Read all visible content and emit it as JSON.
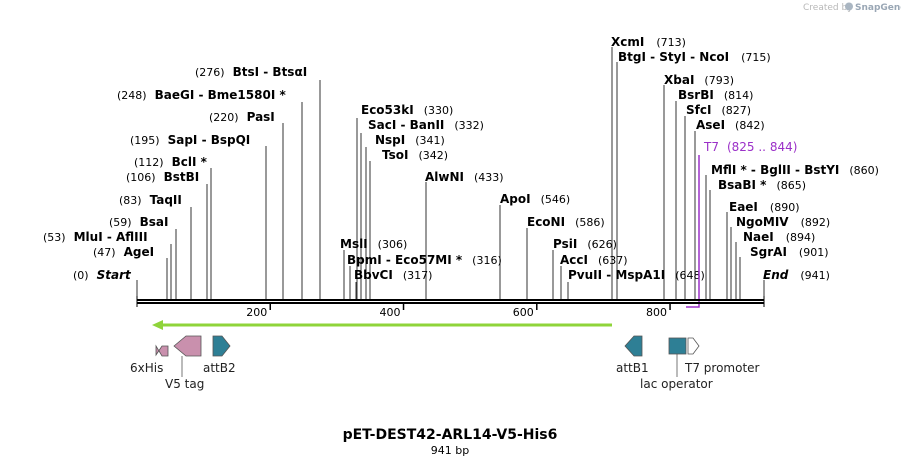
{
  "credit": {
    "prefix": "Created by",
    "brand": "SnapGene"
  },
  "title": "pET-DEST42-ARL14-V5-His6",
  "subtitle": "941 bp",
  "sequence_length": 941,
  "ticks": [
    {
      "value": 200,
      "label": "200"
    },
    {
      "value": 400,
      "label": "400"
    },
    {
      "value": 600,
      "label": "600"
    },
    {
      "value": 800,
      "label": "800"
    }
  ],
  "start_label": {
    "pos": "(0)",
    "name": "Start"
  },
  "end_label": {
    "name": "End",
    "pos": "(941)"
  },
  "sites": [
    {
      "id": "btsi",
      "pos": "(276)",
      "names": "BtsI  - BtsαI",
      "x": "276"
    },
    {
      "id": "baegi",
      "pos": "(248)",
      "names": "BaeGI  - Bme1580I *",
      "x": "248"
    },
    {
      "id": "pasi",
      "pos": "(220)",
      "names": "PasI",
      "x": "220"
    },
    {
      "id": "sapi",
      "pos": "(195)",
      "names": "SapI  - BspQI",
      "x": "195"
    },
    {
      "id": "bcli",
      "pos": "(112)",
      "names": "BclI *",
      "x": "112"
    },
    {
      "id": "bstbi",
      "pos": "(106)",
      "names": "BstBI",
      "x": "106"
    },
    {
      "id": "taqii",
      "pos": "(83)",
      "names": "TaqII",
      "x": "83"
    },
    {
      "id": "bsai",
      "pos": "(59)",
      "names": "BsaI",
      "x": "59"
    },
    {
      "id": "mlui",
      "pos": "(53)",
      "names": "MluI  - AflIII",
      "x": "53"
    },
    {
      "id": "agei",
      "pos": "(47)",
      "names": "AgeI",
      "x": "47"
    },
    {
      "id": "eco53ki",
      "pos": "(330)",
      "names": "Eco53kI",
      "x": "330"
    },
    {
      "id": "saci",
      "pos": "(332)",
      "names": "SacI  - BanII",
      "x": "332"
    },
    {
      "id": "nspi",
      "pos": "(341)",
      "names": "NspI",
      "x": "341"
    },
    {
      "id": "tsoi",
      "pos": "(342)",
      "names": "TsoI",
      "x": "342"
    },
    {
      "id": "msli",
      "pos": "(306)",
      "names": "MslI",
      "x": "306"
    },
    {
      "id": "bpmi",
      "pos": "(316)",
      "names": "BpmI  - Eco57MI *",
      "x": "316"
    },
    {
      "id": "bbvci",
      "pos": "(317)",
      "names": "BbvCI",
      "x": "317"
    },
    {
      "id": "alwni",
      "pos": "(433)",
      "names": "AlwNI",
      "x": "433"
    },
    {
      "id": "apoi",
      "pos": "(546)",
      "names": "ApoI",
      "x": "546"
    },
    {
      "id": "econi",
      "pos": "(586)",
      "names": "EcoNI",
      "x": "586"
    },
    {
      "id": "psii",
      "pos": "(626)",
      "names": "PsiI",
      "x": "626"
    },
    {
      "id": "acci",
      "pos": "(637)",
      "names": "AccI",
      "x": "637"
    },
    {
      "id": "pvuii",
      "pos": "(648)",
      "names": "PvuII  - MspA1I",
      "x": "648"
    },
    {
      "id": "xcmi",
      "pos": "(713)",
      "names": "XcmI",
      "x": "713"
    },
    {
      "id": "btgi",
      "pos": "(715)",
      "names": "BtgI  - StyI  - NcoI",
      "x": "715"
    },
    {
      "id": "xbai",
      "pos": "(793)",
      "names": "XbaI",
      "x": "793"
    },
    {
      "id": "bsrbi",
      "pos": "(814)",
      "names": "BsrBI",
      "x": "814"
    },
    {
      "id": "sfci",
      "pos": "(827)",
      "names": "SfcI",
      "x": "827"
    },
    {
      "id": "asei",
      "pos": "(842)",
      "names": "AseI",
      "x": "842"
    },
    {
      "id": "mfli",
      "pos": "(860)",
      "names": "MflI * - BglII  - BstYI",
      "x": "860"
    },
    {
      "id": "bsabi",
      "pos": "(865)",
      "names": "BsaBI *",
      "x": "865"
    },
    {
      "id": "eaei",
      "pos": "(890)",
      "names": "EaeI",
      "x": "890"
    },
    {
      "id": "ngomiv",
      "pos": "(892)",
      "names": "NgoMIV",
      "x": "892"
    },
    {
      "id": "naei",
      "pos": "(894)",
      "names": "NaeI",
      "x": "894"
    },
    {
      "id": "sgrai",
      "pos": "(901)",
      "names": "SgrAI",
      "x": "901"
    }
  ],
  "primer": {
    "name": "T7",
    "range": "(825 .. 844)",
    "color": "#9b30c8"
  },
  "orf_arrow": {
    "from": 10,
    "to": 715,
    "direction": "reverse",
    "color": "#8fd43a"
  },
  "features": [
    {
      "id": "6xhis",
      "label": "6xHis",
      "type": "tag",
      "color": "#c990ad"
    },
    {
      "id": "v5tag",
      "label": "V5 tag",
      "type": "tag",
      "color": "#c990ad"
    },
    {
      "id": "attb2",
      "label": "attB2",
      "type": "recomb",
      "color": "#2e7f95"
    },
    {
      "id": "attb1",
      "label": "attB1",
      "type": "recomb",
      "color": "#2e7f95"
    },
    {
      "id": "lacop",
      "label": "lac operator",
      "type": "operator",
      "color": "#2e7f95"
    },
    {
      "id": "t7promoter",
      "label": "T7 promoter",
      "type": "promoter",
      "color": "#ffffff"
    }
  ]
}
